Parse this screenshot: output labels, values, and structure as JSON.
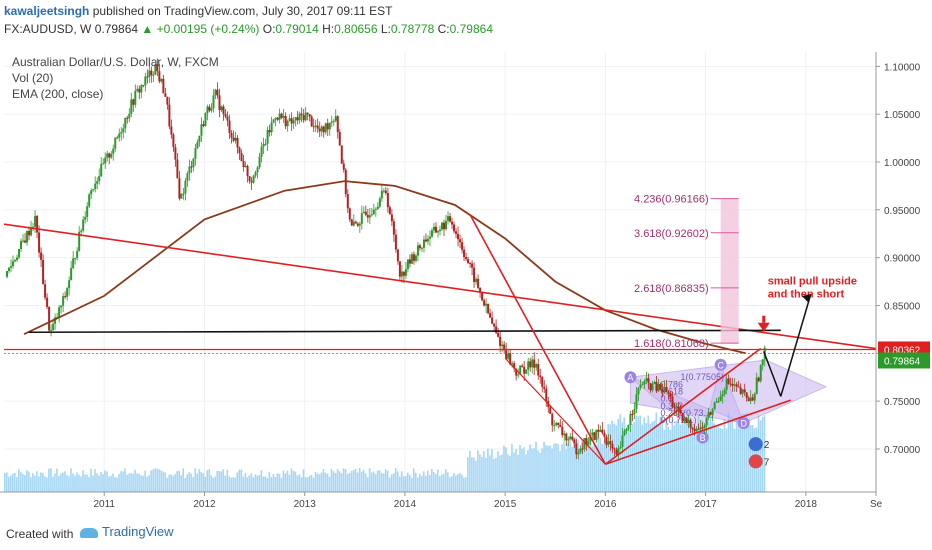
{
  "header": {
    "author": "kawaljeetsingh",
    "published": "published on TradingView.com, July 30, 2017 09:11 EST",
    "symbol": "FX:AUDUSD, W",
    "price": "0.79864",
    "change": "▲ +0.00195 (+0.24%)",
    "ohlc_o_label": "O:",
    "ohlc_o": "0.79014",
    "ohlc_h_label": "H:",
    "ohlc_h": "0.80656",
    "ohlc_l_label": "L:",
    "ohlc_l": "0.78778",
    "ohlc_c_label": "C:",
    "ohlc_c": "0.79864"
  },
  "legend": {
    "title": "Australian Dollar/U.S. Dollar, W, FXCM",
    "vol": "Vol (20)",
    "ema": "EMA (200, close)"
  },
  "footer": {
    "created_with": "Created with",
    "brand": "TradingView"
  },
  "colors": {
    "up_candle": "#2a9b2a",
    "down_candle": "#b22222",
    "ema": "#8b3a1a",
    "trendline": "#e02020",
    "support": "#111111",
    "volume": "#87c8f0",
    "pattern_fill": "#c9b5ef",
    "fib_box": "#f3c4dc"
  },
  "chart_data": {
    "type": "line",
    "title": "Australian Dollar/U.S. Dollar, W, FXCM",
    "x_ticks": [
      "2011",
      "2012",
      "2013",
      "2014",
      "2015",
      "2016",
      "2017",
      "2018",
      "Se"
    ],
    "y_ticks": [
      "1.10000",
      "1.05000",
      "1.00000",
      "0.95000",
      "0.90000",
      "0.85000",
      "0.80000",
      "0.75000",
      "0.70000"
    ],
    "ylim": [
      0.655,
      1.115
    ],
    "current_price_label": "0.79864",
    "marked_price_label": "0.80362",
    "series": [
      {
        "name": "AUDUSD",
        "x": [
          2010.0,
          2010.3,
          2010.45,
          2010.6,
          2010.85,
          2011.1,
          2011.3,
          2011.5,
          2011.6,
          2011.75,
          2012.0,
          2012.1,
          2012.3,
          2012.45,
          2012.7,
          2012.85,
          2013.0,
          2013.15,
          2013.3,
          2013.45,
          2013.65,
          2013.8,
          2013.95,
          2014.0,
          2014.2,
          2014.45,
          2014.6,
          2014.9,
          2015.1,
          2015.3,
          2015.45,
          2015.7,
          2015.95,
          2016.1,
          2016.35,
          2016.6,
          2016.75,
          2016.95,
          2017.05,
          2017.2,
          2017.45,
          2017.58
        ],
        "values": [
          0.88,
          0.94,
          0.82,
          0.86,
          0.97,
          1.02,
          1.07,
          1.1,
          1.07,
          0.96,
          1.05,
          1.07,
          1.02,
          0.98,
          1.05,
          1.04,
          1.05,
          1.03,
          1.05,
          0.93,
          0.95,
          0.97,
          0.88,
          0.89,
          0.92,
          0.94,
          0.9,
          0.82,
          0.78,
          0.79,
          0.73,
          0.7,
          0.72,
          0.69,
          0.77,
          0.76,
          0.73,
          0.72,
          0.74,
          0.77,
          0.75,
          0.8
        ]
      },
      {
        "name": "EMA (200, close)",
        "x": [
          2010.2,
          2011.0,
          2012.0,
          2012.8,
          2013.4,
          2013.9,
          2014.5,
          2015.0,
          2015.5,
          2016.0,
          2016.5,
          2017.0,
          2017.4
        ],
        "values": [
          0.82,
          0.86,
          0.94,
          0.97,
          0.98,
          0.975,
          0.955,
          0.92,
          0.875,
          0.845,
          0.825,
          0.81,
          0.8
        ]
      }
    ],
    "fib_levels": [
      {
        "label": "4.236(0.96166)",
        "value": 0.96166
      },
      {
        "label": "3.618(0.92602)",
        "value": 0.92602
      },
      {
        "label": "2.618(0.86835)",
        "value": 0.86835
      },
      {
        "label": "1.618(0.81068)",
        "value": 0.81068
      }
    ],
    "pattern_points": [
      {
        "label": "A",
        "x": 2016.25,
        "value": 0.775
      },
      {
        "label": "B",
        "x": 2016.97,
        "value": 0.712
      },
      {
        "label": "C",
        "x": 2017.15,
        "value": 0.788
      },
      {
        "label": "D",
        "x": 2017.38,
        "value": 0.727
      }
    ],
    "small_labels": [
      "1(0.77505)",
      "0.786",
      "0.618",
      "0.5",
      "0.382",
      "0.236(0.73...)",
      "0(0.72...)"
    ],
    "markers": [
      "2",
      "7"
    ],
    "annotations": [
      "small pull upside",
      "and then short"
    ]
  }
}
